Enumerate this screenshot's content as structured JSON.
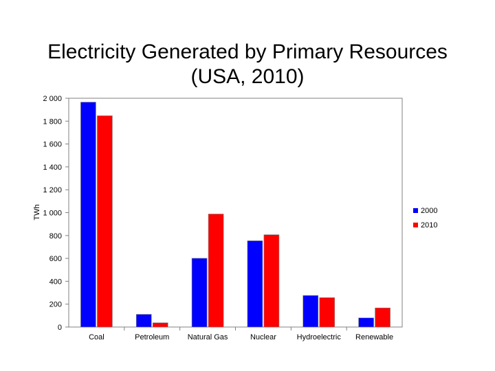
{
  "chart_data": {
    "type": "bar",
    "title": "Electricity Generated by Primary Resources (USA, 2010)",
    "xlabel": "",
    "ylabel": "TWh",
    "ylim": [
      0,
      2000
    ],
    "yticks": [
      0,
      200,
      400,
      600,
      800,
      1000,
      1200,
      1400,
      1600,
      1800,
      2000
    ],
    "ytick_labels": [
      "0",
      "200",
      "400",
      "600",
      "800",
      "1 000",
      "1 200",
      "1 400",
      "1 600",
      "1 800",
      "2 000"
    ],
    "categories": [
      "Coal",
      "Petroleum",
      "Natural Gas",
      "Nuclear",
      "Hydroelectric",
      "Renewable"
    ],
    "series": [
      {
        "name": "2000",
        "color": "#0000ff",
        "values": [
          1966,
          111,
          601,
          754,
          276,
          80
        ]
      },
      {
        "name": "2010",
        "color": "#ff0000",
        "values": [
          1847,
          37,
          988,
          807,
          257,
          167
        ]
      }
    ],
    "legend_position": "right",
    "grid": false
  }
}
